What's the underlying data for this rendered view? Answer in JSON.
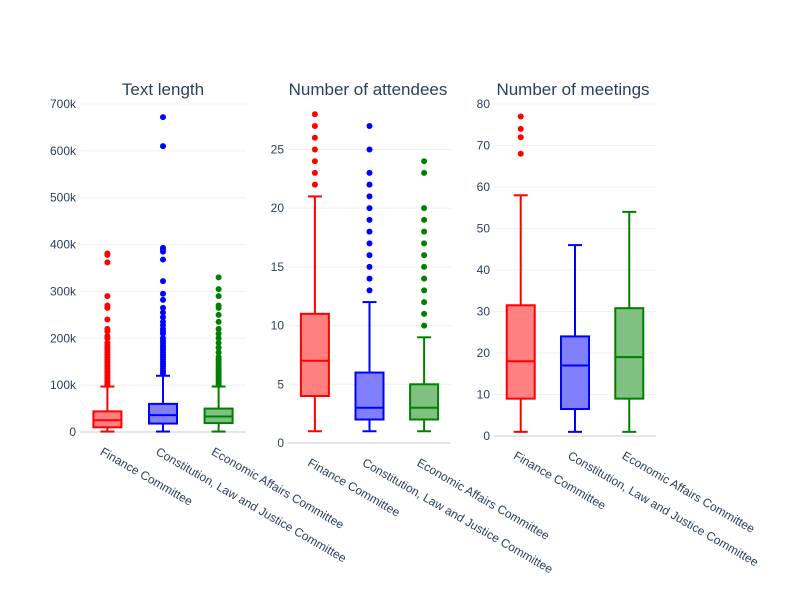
{
  "chart_data": [
    {
      "type": "box",
      "title": "Text length",
      "ylim": [
        0,
        700000
      ],
      "yticks": [
        0,
        100000,
        200000,
        300000,
        400000,
        500000,
        600000,
        700000
      ],
      "yticklabels": [
        "0",
        "100k",
        "200k",
        "300k",
        "400k",
        "500k",
        "600k",
        "700k"
      ],
      "categories": [
        "Finance Committee",
        "Constitution, Law and Justice Committee",
        "Economic Affairs Committee"
      ],
      "series": [
        {
          "name": "Finance Committee",
          "color": "#ff0000",
          "fill": "#ff8080",
          "whisker_low": 1000,
          "q1": 10000,
          "median": 25000,
          "q3": 44000,
          "whisker_high": 97000,
          "outliers": [
            100000,
            105000,
            110000,
            115000,
            120000,
            125000,
            130000,
            135000,
            140000,
            145000,
            150000,
            155000,
            160000,
            165000,
            170000,
            175000,
            180000,
            185000,
            190000,
            200000,
            205000,
            215000,
            220000,
            240000,
            265000,
            270000,
            290000,
            362000,
            378000,
            381000
          ]
        },
        {
          "name": "Constitution, Law and Justice Committee",
          "color": "#0000ff",
          "fill": "#8080ff",
          "whisker_low": 1000,
          "q1": 18000,
          "median": 36000,
          "q3": 60000,
          "whisker_high": 120000,
          "outliers": [
            125000,
            130000,
            135000,
            140000,
            145000,
            150000,
            155000,
            160000,
            165000,
            170000,
            175000,
            180000,
            185000,
            190000,
            195000,
            200000,
            210000,
            215000,
            220000,
            228000,
            235000,
            245000,
            255000,
            265000,
            282000,
            295000,
            322000,
            368000,
            385000,
            390000,
            393000,
            610000,
            672000
          ]
        },
        {
          "name": "Economic Affairs Committee",
          "color": "#008000",
          "fill": "#80c080",
          "whisker_low": 1000,
          "q1": 19000,
          "median": 33000,
          "q3": 50000,
          "whisker_high": 97000,
          "outliers": [
            100000,
            105000,
            110000,
            115000,
            120000,
            125000,
            130000,
            135000,
            140000,
            145000,
            150000,
            155000,
            160000,
            170000,
            180000,
            190000,
            200000,
            210000,
            220000,
            235000,
            250000,
            265000,
            270000,
            290000,
            305000,
            330000
          ]
        }
      ]
    },
    {
      "type": "box",
      "title": "Number of attendees",
      "ylim": [
        0,
        28.7
      ],
      "yticks": [
        0,
        5,
        10,
        15,
        20,
        25
      ],
      "yticklabels": [
        "0",
        "5",
        "10",
        "15",
        "20",
        "25"
      ],
      "categories": [
        "Finance Committee",
        "Constitution, Law and Justice Committee",
        "Economic Affairs Committee"
      ],
      "series": [
        {
          "name": "Finance Committee",
          "color": "#ff0000",
          "fill": "#ff8080",
          "whisker_low": 1,
          "q1": 4,
          "median": 7,
          "q3": 11,
          "whisker_high": 21,
          "outliers": [
            22,
            23,
            24,
            25,
            26,
            27,
            28
          ]
        },
        {
          "name": "Constitution, Law and Justice Committee",
          "color": "#0000ff",
          "fill": "#8080ff",
          "whisker_low": 1,
          "q1": 2,
          "median": 3,
          "q3": 6,
          "whisker_high": 12,
          "outliers": [
            13,
            14,
            15,
            16,
            17,
            18,
            19,
            20,
            21,
            22,
            23,
            25,
            27
          ]
        },
        {
          "name": "Economic Affairs Committee",
          "color": "#008000",
          "fill": "#80c080",
          "whisker_low": 1,
          "q1": 2,
          "median": 3,
          "q3": 5,
          "whisker_high": 9,
          "outliers": [
            10,
            11,
            12,
            13,
            14,
            15,
            16,
            17,
            18,
            19,
            20,
            23,
            24
          ]
        }
      ]
    },
    {
      "type": "box",
      "title": "Number of meetings",
      "ylim": [
        0,
        80
      ],
      "yticks": [
        0,
        10,
        20,
        30,
        40,
        50,
        60,
        70,
        80
      ],
      "yticklabels": [
        "0",
        "10",
        "20",
        "30",
        "40",
        "50",
        "60",
        "70",
        "80"
      ],
      "categories": [
        "Finance Committee",
        "Constitution, Law and Justice Committee",
        "Economic Affairs Committee"
      ],
      "series": [
        {
          "name": "Finance Committee",
          "color": "#ff0000",
          "fill": "#ff8080",
          "whisker_low": 1,
          "q1": 9,
          "median": 18,
          "q3": 31.5,
          "whisker_high": 58,
          "outliers": [
            68,
            72,
            74,
            77
          ]
        },
        {
          "name": "Constitution, Law and Justice Committee",
          "color": "#0000ff",
          "fill": "#8080ff",
          "whisker_low": 1,
          "q1": 6.5,
          "median": 17,
          "q3": 24,
          "whisker_high": 46,
          "outliers": []
        },
        {
          "name": "Economic Affairs Committee",
          "color": "#008000",
          "fill": "#80c080",
          "whisker_low": 1,
          "q1": 9,
          "median": 19,
          "q3": 30.8,
          "whisker_high": 54,
          "outliers": []
        }
      ]
    }
  ]
}
